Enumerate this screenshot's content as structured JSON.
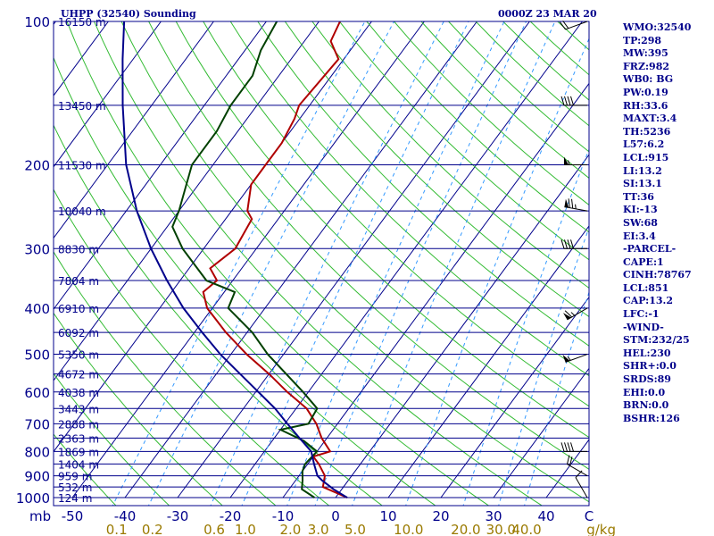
{
  "header": {
    "title": "UHPP (32540) Sounding",
    "time": "0000Z 23 MAR 20"
  },
  "indices": [
    "WMO:32540",
    "TP:298",
    "MW:395",
    "FRZ:982",
    "WB0: BG",
    "PW:0.19",
    "RH:33.6",
    "MAXT:3.4",
    "TH:5236",
    "L57:6.2",
    "LCL:915",
    "LI:13.2",
    "SI:13.1",
    "TT:36",
    "KI:-13",
    "SW:68",
    "EI:3.4",
    "-PARCEL-",
    "CAPE:1",
    "CINH:78767",
    "LCL:851",
    "CAP:13.2",
    "LFC:-1",
    "-WIND-",
    "STM:232/25",
    "HEL:230",
    "SHR+:0.0",
    "SRDS:89",
    "EHI:0.0",
    "BRN:0.0",
    "BSHR:126"
  ],
  "chart_data": {
    "type": "skew-t",
    "pressure_label": "mb",
    "mixing_ratio_unit": "g/kg",
    "pressure_ticks": [
      100,
      200,
      300,
      400,
      500,
      600,
      700,
      800,
      900,
      1000
    ],
    "temperature_ticks": [
      "-50",
      "-40",
      "-30",
      "-20",
      "-10",
      "0",
      "10",
      "20",
      "30",
      "40",
      "C"
    ],
    "mixing_ratio_ticks": [
      "0.1",
      "0.2",
      "0.6",
      "1.0",
      "2.0",
      "3.0",
      "5.0",
      "10.0",
      "20.0",
      "30.0",
      "40.0"
    ],
    "height_labels": [
      {
        "p": 100,
        "label": "16150 m"
      },
      {
        "p": 150,
        "label": "13450 m"
      },
      {
        "p": 200,
        "label": "11530 m"
      },
      {
        "p": 250,
        "label": "10040 m"
      },
      {
        "p": 300,
        "label": "8830 m"
      },
      {
        "p": 350,
        "label": "7804 m"
      },
      {
        "p": 400,
        "label": "6910 m"
      },
      {
        "p": 450,
        "label": "6092 m"
      },
      {
        "p": 500,
        "label": "5350 m"
      },
      {
        "p": 550,
        "label": "4672 m"
      },
      {
        "p": 600,
        "label": "4038 m"
      },
      {
        "p": 650,
        "label": "3443 m"
      },
      {
        "p": 700,
        "label": "2888 m"
      },
      {
        "p": 750,
        "label": "2363 m"
      },
      {
        "p": 800,
        "label": "1869 m"
      },
      {
        "p": 850,
        "label": "1404 m"
      },
      {
        "p": 900,
        "label": "959 m"
      },
      {
        "p": 950,
        "label": "532 m"
      },
      {
        "p": 1000,
        "label": "124 m"
      }
    ],
    "series": [
      {
        "color": "#b00000",
        "points": [
          [
            1000,
            2.2
          ],
          [
            950,
            -3.9
          ],
          [
            900,
            -5.1
          ],
          [
            850,
            -7.9
          ],
          [
            820,
            -10
          ],
          [
            800,
            -7.5
          ],
          [
            750,
            -11
          ],
          [
            700,
            -14
          ],
          [
            650,
            -18
          ],
          [
            600,
            -24
          ],
          [
            550,
            -30
          ],
          [
            500,
            -37
          ],
          [
            450,
            -44
          ],
          [
            400,
            -51
          ],
          [
            370,
            -54
          ],
          [
            350,
            -53
          ],
          [
            330,
            -56
          ],
          [
            300,
            -54
          ],
          [
            260,
            -55
          ],
          [
            250,
            -57
          ],
          [
            220,
            -60
          ],
          [
            200,
            -60
          ],
          [
            180,
            -60
          ],
          [
            160,
            -61
          ],
          [
            150,
            -62
          ],
          [
            120,
            -61
          ],
          [
            110,
            -65
          ],
          [
            100,
            -66
          ]
        ]
      },
      {
        "color": "#004000",
        "points": [
          [
            1000,
            -4
          ],
          [
            960,
            -7.6
          ],
          [
            920,
            -8.7
          ],
          [
            880,
            -10
          ],
          [
            850,
            -10.5
          ],
          [
            800,
            -10
          ],
          [
            760,
            -14
          ],
          [
            720,
            -20
          ],
          [
            700,
            -15.5
          ],
          [
            650,
            -16
          ],
          [
            600,
            -21
          ],
          [
            500,
            -33
          ],
          [
            450,
            -39
          ],
          [
            400,
            -47
          ],
          [
            370,
            -48
          ],
          [
            350,
            -55
          ],
          [
            300,
            -64
          ],
          [
            270,
            -69
          ],
          [
            250,
            -70
          ],
          [
            200,
            -74
          ],
          [
            170,
            -74
          ],
          [
            150,
            -75
          ],
          [
            130,
            -75
          ],
          [
            115,
            -77
          ],
          [
            100,
            -78
          ]
        ]
      },
      {
        "color": "#00008b",
        "points": [
          [
            1000,
            2.2
          ],
          [
            960,
            -1.6
          ],
          [
            920,
            -5
          ],
          [
            900,
            -6.5
          ],
          [
            850,
            -8.8
          ],
          [
            800,
            -11.1
          ],
          [
            750,
            -15.2
          ],
          [
            700,
            -19.5
          ],
          [
            650,
            -24
          ],
          [
            600,
            -29.5
          ],
          [
            550,
            -35.5
          ],
          [
            500,
            -42
          ],
          [
            450,
            -48.5
          ],
          [
            400,
            -55.5
          ],
          [
            350,
            -62.5
          ],
          [
            300,
            -70
          ],
          [
            250,
            -78
          ],
          [
            200,
            -86.5
          ],
          [
            150,
            -95.5
          ],
          [
            120,
            -102
          ],
          [
            100,
            -107
          ]
        ]
      }
    ],
    "wind_barbs": [
      {
        "p": 100,
        "dir": 250,
        "spd": 20
      },
      {
        "p": 150,
        "dir": 270,
        "spd": 40
      },
      {
        "p": 200,
        "dir": 270,
        "spd": 55
      },
      {
        "p": 250,
        "dir": 280,
        "spd": 75
      },
      {
        "p": 300,
        "dir": 270,
        "spd": 40
      },
      {
        "p": 400,
        "dir": 240,
        "spd": 65
      },
      {
        "p": 500,
        "dir": 250,
        "spd": 55
      },
      {
        "p": 800,
        "dir": 270,
        "spd": 40
      },
      {
        "p": 900,
        "dir": 300,
        "spd": 20
      },
      {
        "p": 1000,
        "dir": 330,
        "spd": 10
      }
    ]
  }
}
